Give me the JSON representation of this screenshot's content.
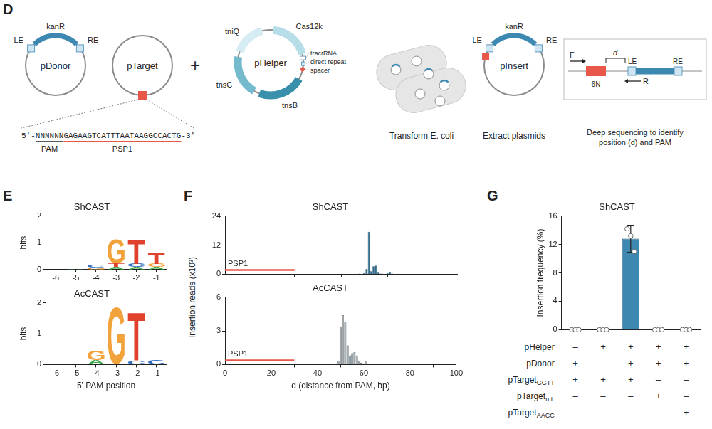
{
  "panel_labels": [
    "D",
    "E",
    "F",
    "G"
  ],
  "diagram": {
    "pDonor": {
      "name": "pDonor",
      "left": "LE",
      "gene": "kanR",
      "right": "RE"
    },
    "pTarget": {
      "name": "pTarget",
      "sequence": {
        "five_prime": "5'-",
        "pam": "NNNNNN",
        "protospacer": "GAGAAGTCATTTAATAAGGCCACTG",
        "three_prime": "-3'"
      },
      "pam_label": "PAM",
      "protospacer_label": "PSP1"
    },
    "plus": "+",
    "pHelper": {
      "name": "pHelper",
      "genes": [
        "tniQ",
        "Cas12k",
        "tnsB",
        "tnsC"
      ],
      "elements": [
        "tracrRNA",
        "direct repeat",
        "spacer"
      ]
    },
    "step1": "Transform E. coli",
    "pInsert": {
      "name": "pInsert",
      "left": "LE",
      "gene": "kanR",
      "right": "RE"
    },
    "step2": "Extract plasmids",
    "readout": {
      "forward": "F",
      "reverse": "R",
      "random": "6N",
      "distance": "d",
      "left": "LE",
      "right": "RE",
      "caption": "Deep sequencing to identify position (d) and PAM"
    }
  },
  "chart_data": [
    {
      "type": "logo",
      "title": "ShCAST",
      "categories": [
        "-6",
        "-5",
        "-4",
        "-3",
        "-2",
        "-1"
      ],
      "values": [
        [],
        [
          {
            "letter": "A",
            "bits": 0.03,
            "color": "#3aa845"
          }
        ],
        [
          {
            "letter": "G",
            "bits": 0.08,
            "color": "#f2a23a"
          },
          {
            "letter": "C",
            "bits": 0.1,
            "color": "#2f6fc0"
          }
        ],
        [
          {
            "letter": "A",
            "bits": 0.1,
            "color": "#3aa845"
          },
          {
            "letter": "T",
            "bits": 0.12,
            "color": "#e0412d"
          },
          {
            "letter": "G",
            "bits": 0.9,
            "color": "#f2a23a"
          }
        ],
        [
          {
            "letter": "A",
            "bits": 0.1,
            "color": "#3aa845"
          },
          {
            "letter": "C",
            "bits": 0.12,
            "color": "#2f6fc0"
          },
          {
            "letter": "T",
            "bits": 0.88,
            "color": "#e0412d"
          }
        ],
        [
          {
            "letter": "A",
            "bits": 0.1,
            "color": "#3aa845"
          },
          {
            "letter": "G",
            "bits": 0.12,
            "color": "#f2a23a"
          },
          {
            "letter": "T",
            "bits": 0.4,
            "color": "#e0412d"
          }
        ]
      ],
      "y_label": "bits",
      "ylim": [
        0,
        2
      ],
      "yticks": [
        0,
        1,
        2
      ]
    },
    {
      "type": "logo",
      "title": "AcCAST",
      "categories": [
        "-6",
        "-5",
        "-4",
        "-3",
        "-2",
        "-1"
      ],
      "values": [
        [],
        [],
        [
          {
            "letter": "A",
            "bits": 0.15,
            "color": "#3aa845"
          },
          {
            "letter": "G",
            "bits": 0.3,
            "color": "#f2a23a"
          }
        ],
        [
          {
            "letter": "G",
            "bits": 1.85,
            "color": "#f2a23a"
          }
        ],
        [
          {
            "letter": "C",
            "bits": 0.12,
            "color": "#2f6fc0"
          },
          {
            "letter": "T",
            "bits": 1.55,
            "color": "#e0412d"
          }
        ],
        [
          {
            "letter": "C",
            "bits": 0.15,
            "color": "#2f6fc0"
          }
        ]
      ],
      "y_label": "bits",
      "x_label": "5' PAM position",
      "ylim": [
        0,
        2
      ],
      "yticks": [
        0,
        1,
        2
      ]
    },
    {
      "type": "bar",
      "title": "ShCAST",
      "x": [
        50,
        52,
        55,
        58,
        60,
        61,
        62,
        63,
        64,
        65,
        66,
        67,
        68,
        70,
        71,
        72,
        75,
        80,
        85
      ],
      "values": [
        0.1,
        0.2,
        0.1,
        0.3,
        0.5,
        2.2,
        17.5,
        1.2,
        3.3,
        3.6,
        0.6,
        0.3,
        0.2,
        0.5,
        0.8,
        0.3,
        0.2,
        0.1,
        0.1
      ],
      "color": "#2e6d8c",
      "xlim": [
        0,
        100
      ],
      "xticks": [
        0,
        20,
        40,
        60,
        80,
        100
      ],
      "ylim": [
        0,
        24
      ],
      "yticks": [
        0,
        12,
        24
      ],
      "y_label": "Insertion reads (x10³)",
      "tick_labels": "y",
      "annotations": [
        {
          "text": "PSP1",
          "x_range": [
            0,
            30
          ],
          "color": "#e8584a"
        }
      ]
    },
    {
      "type": "bar",
      "title": "AcCAST",
      "x": [
        46,
        48,
        49,
        50,
        51,
        52,
        53,
        54,
        55,
        56,
        57,
        58,
        59,
        60,
        61,
        62
      ],
      "values": [
        0.05,
        0.1,
        0.3,
        3.4,
        4.4,
        3.8,
        1.7,
        0.8,
        1.0,
        1.1,
        0.8,
        0.3,
        0.15,
        0.1,
        0.3,
        0.05
      ],
      "color": "#a6a6a6",
      "xlim": [
        0,
        100
      ],
      "xticks": [
        0,
        20,
        40,
        60,
        80,
        100
      ],
      "ylim": [
        0,
        6
      ],
      "yticks": [
        0,
        3,
        6
      ],
      "x_label": "d (distance from PAM, bp)",
      "annotations": [
        {
          "text": "PSP1",
          "x_range": [
            0,
            30
          ],
          "color": "#e8584a"
        }
      ]
    },
    {
      "type": "bar",
      "title": "ShCAST",
      "categories": [
        null,
        null,
        null,
        null,
        null
      ],
      "values": [
        0,
        0,
        12.8,
        0,
        0
      ],
      "error": [
        0,
        0,
        1.9,
        0,
        0
      ],
      "points": [
        [
          0,
          0,
          0
        ],
        [
          0,
          0,
          0
        ],
        [
          14.2,
          13.2,
          11.0
        ],
        [
          0,
          0,
          0
        ],
        [
          0,
          0,
          0
        ]
      ],
      "color": "#3d88b0",
      "ylim": [
        0,
        16
      ],
      "yticks": [
        0,
        4,
        8,
        12,
        16
      ],
      "y_label": "Insertion frequency (%)",
      "tick_labels": "y"
    }
  ],
  "table": {
    "rows": [
      {
        "label": "pHelper",
        "cells": [
          "–",
          "+",
          "+",
          "+",
          "+"
        ]
      },
      {
        "label": "pDonor",
        "cells": [
          "+",
          "–",
          "+",
          "+",
          "+"
        ]
      },
      {
        "label": "pTarget",
        "subscript": "GGTT",
        "cells": [
          "+",
          "+",
          "+",
          "–",
          "–"
        ]
      },
      {
        "label": "pTarget",
        "subscript": "n.t.",
        "cells": [
          "–",
          "–",
          "–",
          "+",
          "–"
        ]
      },
      {
        "label": "pTarget",
        "subscript": "AACC",
        "cells": [
          "–",
          "–",
          "–",
          "–",
          "+"
        ]
      }
    ]
  }
}
